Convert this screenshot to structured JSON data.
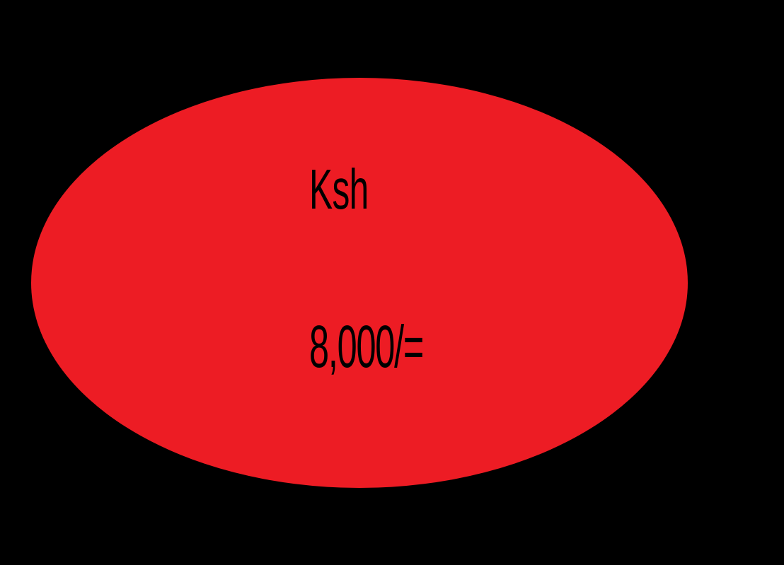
{
  "shape": {
    "background_color": "#000000",
    "fill_color": "#ED1C24"
  },
  "price": {
    "currency": "Ksh",
    "amount": "8,000/="
  }
}
